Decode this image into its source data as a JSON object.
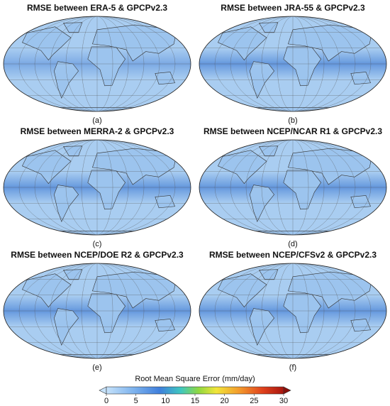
{
  "panels": [
    {
      "title": "RMSE between ERA-5 & GPCPv2.3",
      "label": "(a)"
    },
    {
      "title": "RMSE between JRA-55 & GPCPv2.3",
      "label": "(b)"
    },
    {
      "title": "RMSE between MERRA-2 & GPCPv2.3",
      "label": "(c)"
    },
    {
      "title": "RMSE between NCEP/NCAR R1 & GPCPv2.3",
      "label": "(d)"
    },
    {
      "title": "RMSE between NCEP/DOE R2 & GPCPv2.3",
      "label": "(e)"
    },
    {
      "title": "RMSE between NCEP/CFSv2 & GPCPv2.3",
      "label": "(f)"
    }
  ],
  "colorbar": {
    "label": "Root Mean Square Error (mm/day)",
    "range": [
      0,
      30
    ],
    "ticks": [
      0,
      5,
      10,
      15,
      20,
      25,
      30
    ]
  }
}
